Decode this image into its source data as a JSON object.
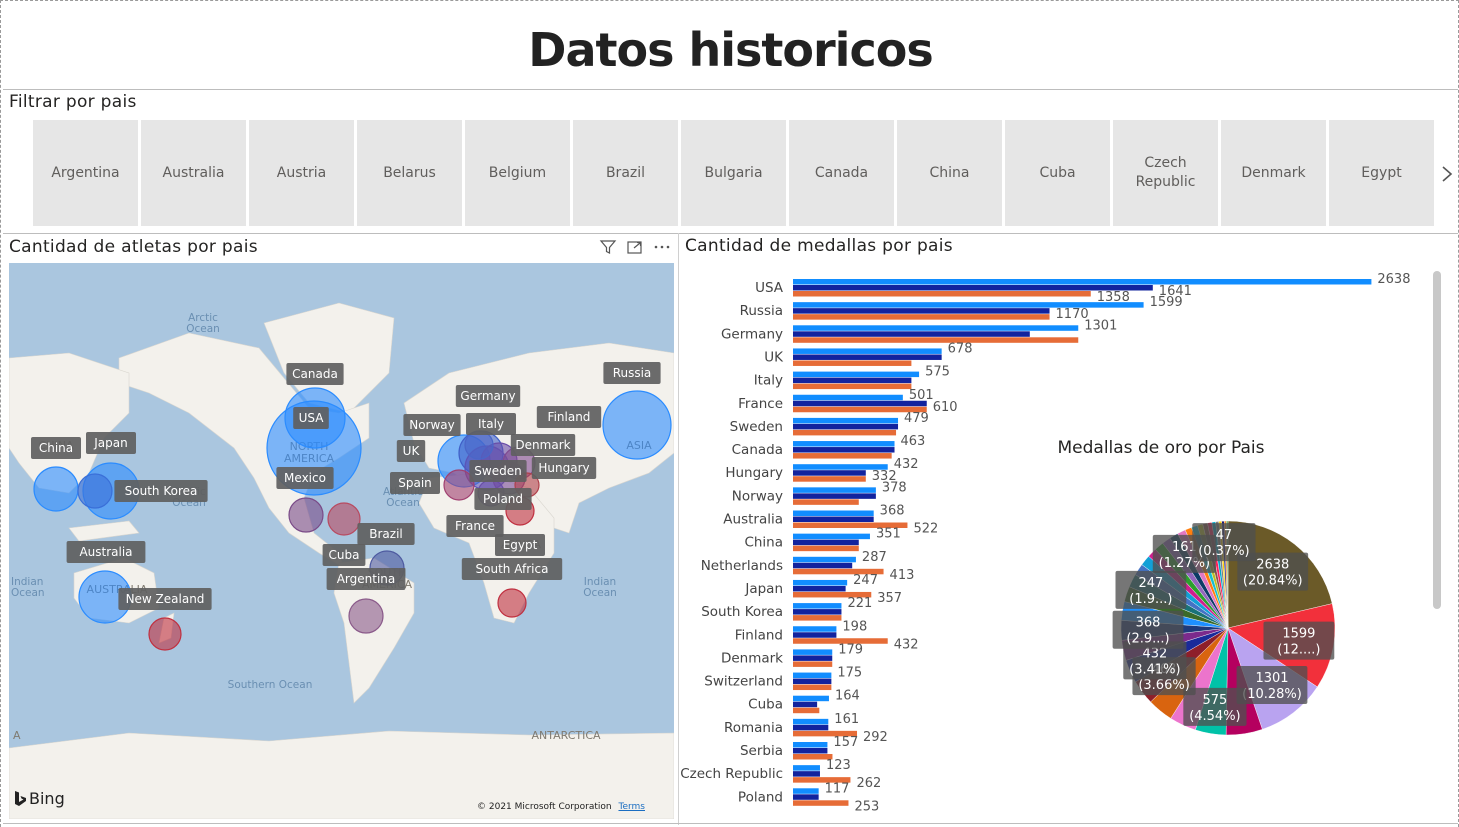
{
  "header": {
    "title": "Datos historicos"
  },
  "slicer": {
    "title": "Filtrar por pais",
    "items": [
      "Argentina",
      "Australia",
      "Austria",
      "Belarus",
      "Belgium",
      "Brazil",
      "Bulgaria",
      "Canada",
      "China",
      "Cuba",
      "Czech Republic",
      "Denmark",
      "Egypt"
    ],
    "next_icon": "chevron-right-icon"
  },
  "map": {
    "title": "Cantidad de atletas por pais",
    "icons": [
      "filter-icon",
      "focus-mode-icon",
      "more-options-icon"
    ],
    "ocean_labels": [
      "Arctic Ocean",
      "Atlantic Ocean",
      "Pacific Ocean",
      "Indian Ocean",
      "Southern Ocean",
      "Indian Ocean"
    ],
    "region_labels": [
      "NORTH AMERICA",
      "AUSTRALIA",
      "ASIA",
      "AFRICA",
      "SOUTH AMERICA",
      "ANTARCTICA",
      "CHINA",
      "A"
    ],
    "country_labels": [
      "Canada",
      "USA",
      "Mexico",
      "Cuba",
      "Brazil",
      "Argentina",
      "China",
      "Japan",
      "South Korea",
      "Australia",
      "New Zealand",
      "Germany",
      "Norway",
      "Italy",
      "UK",
      "Spain",
      "Denmark",
      "Finland",
      "Hungary",
      "Sweden",
      "Poland",
      "France",
      "Egypt",
      "South Africa",
      "Russia"
    ],
    "provider": "Bing",
    "copyright": "© 2021 Microsoft Corporation",
    "terms": "Terms",
    "land_color": "#f3f1ec",
    "water_color": "#aac6df"
  },
  "medals": {
    "title": "Cantidad de medallas por pais"
  },
  "chart_data": [
    {
      "type": "bar",
      "orientation": "horizontal",
      "categories": [
        "USA",
        "Russia",
        "Germany",
        "UK",
        "Italy",
        "France",
        "Sweden",
        "Canada",
        "Hungary",
        "Norway",
        "Australia",
        "China",
        "Netherlands",
        "Japan",
        "South Korea",
        "Finland",
        "Denmark",
        "Switzerland",
        "Cuba",
        "Romania",
        "Serbia",
        "Czech Republic",
        "Poland"
      ],
      "series": [
        {
          "color": "#118dff",
          "values": [
            2638,
            1599,
            1301,
            678,
            575,
            501,
            479,
            463,
            432,
            378,
            368,
            351,
            287,
            247,
            221,
            198,
            179,
            175,
            164,
            161,
            157,
            123,
            117
          ]
        },
        {
          "color": "#12239e",
          "values": [
            1641,
            1170,
            1080,
            678,
            540,
            610,
            479,
            463,
            332,
            378,
            368,
            300,
            270,
            240,
            221,
            198,
            179,
            175,
            110,
            161,
            157,
            123,
            117
          ]
        },
        {
          "color": "#e66c37",
          "values": [
            1358,
            1170,
            1301,
            540,
            540,
            610,
            470,
            450,
            332,
            300,
            522,
            300,
            413,
            357,
            221,
            432,
            179,
            175,
            120,
            292,
            180,
            262,
            253
          ]
        }
      ],
      "data_labels": [
        {
          "category": "USA",
          "labels": [
            "2638",
            "1641",
            "1358"
          ]
        },
        {
          "category": "Russia",
          "labels": [
            "1599",
            "1170"
          ]
        },
        {
          "category": "Germany",
          "labels": [
            "1301"
          ]
        },
        {
          "category": "UK",
          "labels": [
            "678"
          ]
        },
        {
          "category": "Italy",
          "labels": [
            "575"
          ]
        },
        {
          "category": "France",
          "labels": [
            "501",
            "610"
          ]
        },
        {
          "category": "Sweden",
          "labels": [
            "479"
          ]
        },
        {
          "category": "Canada",
          "labels": [
            "463"
          ]
        },
        {
          "category": "Hungary",
          "labels": [
            "432",
            "332"
          ]
        },
        {
          "category": "Norway",
          "labels": [
            "378"
          ]
        },
        {
          "category": "Australia",
          "labels": [
            "368",
            "522"
          ]
        },
        {
          "category": "China",
          "labels": [
            "351"
          ]
        },
        {
          "category": "Netherlands",
          "labels": [
            "287",
            "413"
          ]
        },
        {
          "category": "Japan",
          "labels": [
            "247",
            "357"
          ]
        },
        {
          "category": "South Korea",
          "labels": [
            "221"
          ]
        },
        {
          "category": "Finland",
          "labels": [
            "198",
            "432"
          ]
        },
        {
          "category": "Denmark",
          "labels": [
            "179"
          ]
        },
        {
          "category": "Switzerland",
          "labels": [
            "175"
          ]
        },
        {
          "category": "Cuba",
          "labels": [
            "164"
          ]
        },
        {
          "category": "Romania",
          "labels": [
            "161",
            "292"
          ]
        },
        {
          "category": "Serbia",
          "labels": [
            "157"
          ]
        },
        {
          "category": "Czech Republic",
          "labels": [
            "123",
            "262"
          ]
        },
        {
          "category": "Poland",
          "labels": [
            "117",
            "253"
          ]
        }
      ],
      "xlim": [
        0,
        2700
      ]
    },
    {
      "type": "pie",
      "title": "Medallas de oro por Pais",
      "slices": [
        {
          "value": 2638,
          "label": "2638 (20.84%)",
          "color": "#6b5a28"
        },
        {
          "value": 1599,
          "label": "1599 (12....)",
          "color": "#f2303b"
        },
        {
          "value": 1301,
          "label": "1301 (10.28%)",
          "color": "#b9a3f0"
        },
        {
          "value": 678,
          "color": "#b5005f"
        },
        {
          "value": 575,
          "label": "575 (4.54%)",
          "color": "#00c2a8"
        },
        {
          "value": 501,
          "color": "#ec74cc"
        },
        {
          "value": 479,
          "color": "#d9640f"
        },
        {
          "value": 463,
          "label": "463 (3.66%)",
          "color": "#8e1f2a"
        },
        {
          "value": 432,
          "label": "432 (3.41%)",
          "color": "#1a2a9a"
        },
        {
          "value": 378,
          "color": "#7b2a8c"
        },
        {
          "value": 368,
          "label": "368 (2.9...)",
          "color": "#1f3a7a"
        },
        {
          "value": 351,
          "color": "#1e90ff"
        },
        {
          "value": 287,
          "color": "#3a6a2a"
        },
        {
          "value": 247,
          "label": "247 (1.9...)",
          "color": "#197278"
        },
        {
          "value": 221,
          "color": "#4472c4"
        },
        {
          "value": 198,
          "color": "#12a0d7"
        },
        {
          "value": 179,
          "color": "#d01e8f"
        },
        {
          "value": 175,
          "color": "#2ca02c"
        },
        {
          "value": 164,
          "color": "#9467bd"
        },
        {
          "value": 161,
          "label": "161 (1.27%)",
          "color": "#0d3b66"
        },
        {
          "value": 157,
          "color": "#e377c2"
        },
        {
          "value": 123,
          "color": "#ff7f0e"
        },
        {
          "value": 117,
          "color": "#17becf"
        },
        {
          "value": 100,
          "color": "#bcbd22"
        },
        {
          "value": 90,
          "color": "#8c564b"
        },
        {
          "value": 80,
          "color": "#ff1f5b"
        },
        {
          "value": 70,
          "color": "#00a6ca"
        },
        {
          "value": 60,
          "color": "#7f7f7f"
        },
        {
          "value": 52,
          "color": "#ffd000"
        },
        {
          "value": 47,
          "label": "47 (0.37%)",
          "color": "#1b1b7a"
        },
        {
          "value": 40,
          "color": "#f28e2b"
        },
        {
          "value": 30,
          "color": "#59a14f"
        }
      ]
    }
  ]
}
